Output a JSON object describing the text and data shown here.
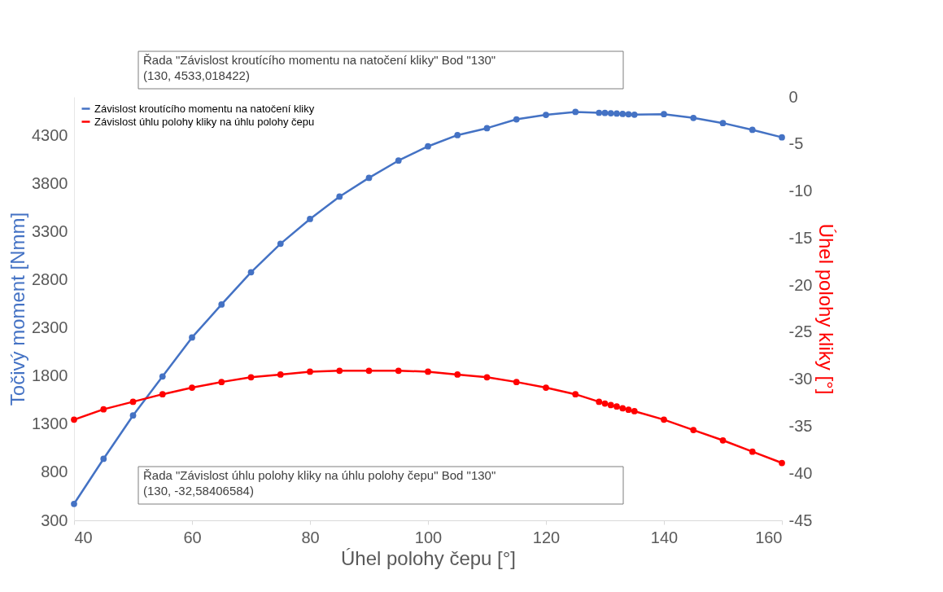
{
  "chart_data": {
    "type": "line",
    "xlabel": "Úhel polohy čepu [°]",
    "ylabel": "Točivý moment [Nmm]",
    "y2label": "Úhel polohy kliky [°]",
    "x": [
      40,
      45,
      50,
      55,
      60,
      65,
      70,
      75,
      80,
      85,
      90,
      95,
      100,
      105,
      110,
      115,
      120,
      125,
      129,
      130,
      131,
      132,
      133,
      134,
      135,
      140,
      145,
      150,
      155,
      160
    ],
    "series": [
      {
        "name": "Závislost kroutícího momentu na natočení kliky",
        "color": "#4472c4",
        "values": [
          471,
          939,
          1390,
          1795,
          2200,
          2543,
          2878,
          3174,
          3431,
          3664,
          3859,
          4038,
          4186,
          4303,
          4375,
          4467,
          4513,
          4544,
          4535,
          4533.018422,
          4530,
          4527,
          4523,
          4520,
          4515,
          4521,
          4482,
          4428,
          4358,
          4280
        ]
      },
      {
        "name": "Závislost úhlu polohy kliky na úhlu polohy čepu",
        "color": "#ff0000",
        "axis": "y2",
        "values": [
          -34.3,
          -33.2,
          -32.4,
          -31.6,
          -30.9,
          -30.3,
          -29.8,
          -29.5,
          -29.2,
          -29.1,
          -29.1,
          -29.1,
          -29.2,
          -29.5,
          -29.8,
          -30.3,
          -30.9,
          -31.6,
          -32.4,
          -32.58406584,
          -32.75,
          -32.9,
          -33.1,
          -33.25,
          -33.4,
          -34.3,
          -35.4,
          -36.5,
          -37.7,
          -38.9
        ]
      }
    ],
    "xlim": [
      40,
      160
    ],
    "xticks": [
      40,
      60,
      80,
      100,
      120,
      140,
      160
    ],
    "ylim": [
      300,
      4700
    ],
    "yticks": [
      300,
      800,
      1300,
      1800,
      2300,
      2800,
      3300,
      3800,
      4300
    ],
    "y2lim": [
      -45,
      0
    ],
    "y2ticks": [
      -45,
      -40,
      -35,
      -30,
      -25,
      -20,
      -15,
      -10,
      -5,
      0
    ],
    "marker": "circle",
    "line_style": "solid",
    "grid": false,
    "legend": "top left",
    "annotations": [
      "Řada \"Závislost kroutícího momentu na natočení kliky\" Bod \"130\"\n(130, 4533,018422)",
      "Řada \"Závislost úhlu polohy kliky na úhlu polohy čepu\" Bod \"130\"\n(130, -32,58406584)"
    ]
  }
}
